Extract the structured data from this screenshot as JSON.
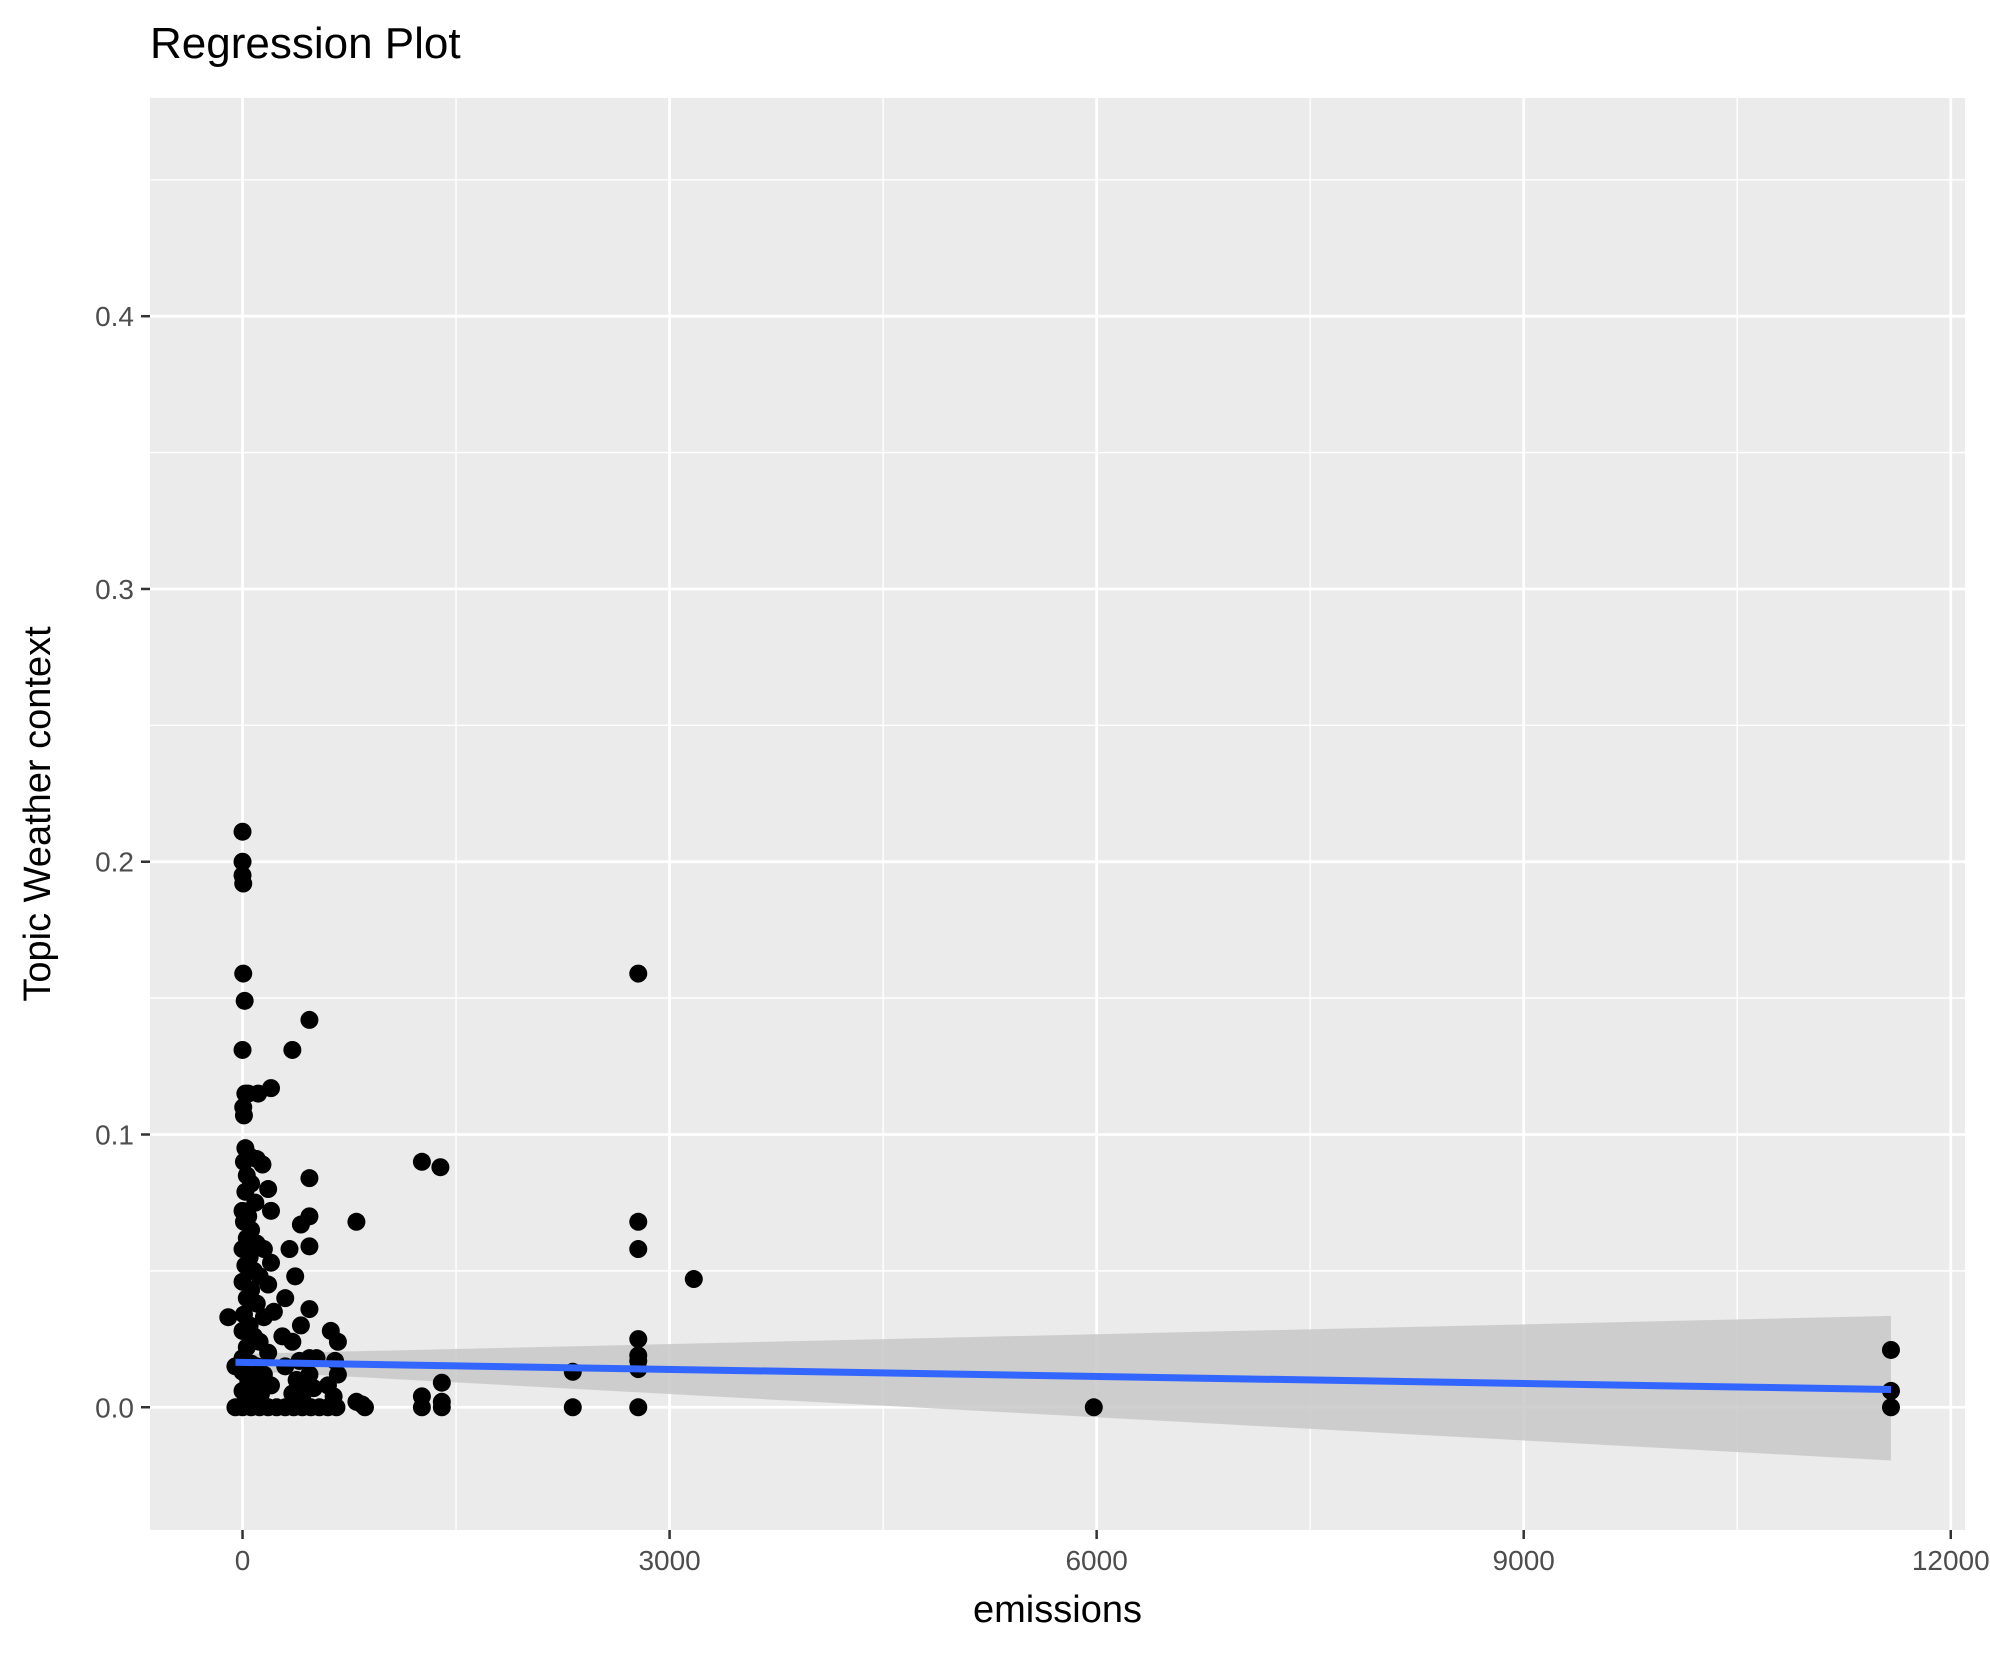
{
  "chart_data": {
    "type": "scatter",
    "title": "Regression Plot",
    "xlabel": "emissions",
    "ylabel": "Topic Weather context",
    "xlim": [
      -650,
      12100
    ],
    "ylim": [
      -0.045,
      0.48
    ],
    "x_ticks": [
      0,
      3000,
      6000,
      9000,
      12000
    ],
    "x_tick_labels": [
      "0",
      "3000",
      "6000",
      "9000",
      "12000"
    ],
    "y_ticks": [
      0.0,
      0.1,
      0.2,
      0.3,
      0.4
    ],
    "y_tick_labels": [
      "0.0",
      "0.1",
      "0.2",
      "0.3",
      "0.4"
    ],
    "grid": true,
    "legend": "none",
    "colors": {
      "panel": "#EBEBEB",
      "grid": "#FFFFFF",
      "points": "#000000",
      "line": "#3366FF",
      "band": "#C8C8C8"
    },
    "series": [
      {
        "type": "scatter",
        "points": [
          [
            0,
            0.211
          ],
          [
            0,
            0.2
          ],
          [
            0,
            0.195
          ],
          [
            5,
            0.192
          ],
          [
            5,
            0.159
          ],
          [
            15,
            0.149
          ],
          [
            0,
            0.131
          ],
          [
            20,
            0.115
          ],
          [
            5,
            0.11
          ],
          [
            10,
            0.107
          ],
          [
            40,
            0.115
          ],
          [
            110,
            0.115
          ],
          [
            200,
            0.117
          ],
          [
            20,
            0.095
          ],
          [
            10,
            0.09
          ],
          [
            50,
            0.092
          ],
          [
            100,
            0.091
          ],
          [
            140,
            0.089
          ],
          [
            30,
            0.085
          ],
          [
            60,
            0.082
          ],
          [
            180,
            0.08
          ],
          [
            20,
            0.079
          ],
          [
            90,
            0.075
          ],
          [
            200,
            0.072
          ],
          [
            0,
            0.072
          ],
          [
            40,
            0.07
          ],
          [
            10,
            0.068
          ],
          [
            60,
            0.065
          ],
          [
            30,
            0.062
          ],
          [
            100,
            0.06
          ],
          [
            0,
            0.058
          ],
          [
            150,
            0.058
          ],
          [
            50,
            0.055
          ],
          [
            200,
            0.053
          ],
          [
            20,
            0.052
          ],
          [
            80,
            0.05
          ],
          [
            120,
            0.048
          ],
          [
            0,
            0.046
          ],
          [
            180,
            0.045
          ],
          [
            60,
            0.043
          ],
          [
            30,
            0.04
          ],
          [
            100,
            0.038
          ],
          [
            220,
            0.035
          ],
          [
            10,
            0.034
          ],
          [
            150,
            0.033
          ],
          [
            -100,
            0.033
          ],
          [
            50,
            0.03
          ],
          [
            0,
            0.028
          ],
          [
            80,
            0.026
          ],
          [
            120,
            0.024
          ],
          [
            30,
            0.022
          ],
          [
            180,
            0.02
          ],
          [
            0,
            0.018
          ],
          [
            60,
            0.016
          ],
          [
            100,
            0.015
          ],
          [
            -50,
            0.015
          ],
          [
            0,
            0.013
          ],
          [
            150,
            0.012
          ],
          [
            40,
            0.01
          ],
          [
            200,
            0.008
          ],
          [
            90,
            0.007
          ],
          [
            0,
            0.006
          ],
          [
            130,
            0.005
          ],
          [
            60,
            0.004
          ],
          [
            20,
            0.002
          ],
          [
            -50,
            0.0
          ],
          [
            0,
            0.0
          ],
          [
            60,
            0.0
          ],
          [
            120,
            0.0
          ],
          [
            180,
            0.0
          ],
          [
            240,
            0.0
          ],
          [
            300,
            0.0
          ],
          [
            350,
            0.131
          ],
          [
            470,
            0.142
          ],
          [
            470,
            0.084
          ],
          [
            470,
            0.07
          ],
          [
            410,
            0.067
          ],
          [
            470,
            0.059
          ],
          [
            330,
            0.058
          ],
          [
            370,
            0.048
          ],
          [
            300,
            0.04
          ],
          [
            470,
            0.036
          ],
          [
            410,
            0.03
          ],
          [
            280,
            0.026
          ],
          [
            350,
            0.024
          ],
          [
            470,
            0.018
          ],
          [
            520,
            0.018
          ],
          [
            400,
            0.017
          ],
          [
            300,
            0.015
          ],
          [
            470,
            0.012
          ],
          [
            380,
            0.01
          ],
          [
            430,
            0.008
          ],
          [
            500,
            0.007
          ],
          [
            350,
            0.005
          ],
          [
            420,
            0.003
          ],
          [
            360,
            0.0
          ],
          [
            420,
            0.0
          ],
          [
            480,
            0.0
          ],
          [
            540,
            0.0
          ],
          [
            600,
            0.0
          ],
          [
            620,
            0.028
          ],
          [
            670,
            0.024
          ],
          [
            650,
            0.017
          ],
          [
            670,
            0.012
          ],
          [
            600,
            0.008
          ],
          [
            640,
            0.004
          ],
          [
            660,
            0.0
          ],
          [
            800,
            0.068
          ],
          [
            800,
            0.002
          ],
          [
            840,
            0.001
          ],
          [
            860,
            0.0
          ],
          [
            1260,
            0.09
          ],
          [
            1390,
            0.088
          ],
          [
            1260,
            0.004
          ],
          [
            1260,
            0.0
          ],
          [
            1400,
            0.009
          ],
          [
            1400,
            0.002
          ],
          [
            1400,
            0.0
          ],
          [
            2320,
            0.013
          ],
          [
            2320,
            0.0
          ],
          [
            2780,
            0.159
          ],
          [
            2780,
            0.068
          ],
          [
            2780,
            0.058
          ],
          [
            2780,
            0.025
          ],
          [
            2780,
            0.019
          ],
          [
            2780,
            0.017
          ],
          [
            2780,
            0.014
          ],
          [
            2780,
            0.0
          ],
          [
            3170,
            0.047
          ],
          [
            5980,
            0.0
          ],
          [
            11580,
            0.021
          ],
          [
            11580,
            0.006
          ],
          [
            11580,
            0.0
          ]
        ]
      },
      {
        "type": "line",
        "name": "",
        "x": [
          -50,
          11580
        ],
        "y": [
          0.0165,
          0.0065
        ],
        "band_low": [
          0.0135,
          -0.0195
        ],
        "band_high": [
          0.0195,
          0.0335
        ]
      }
    ]
  }
}
